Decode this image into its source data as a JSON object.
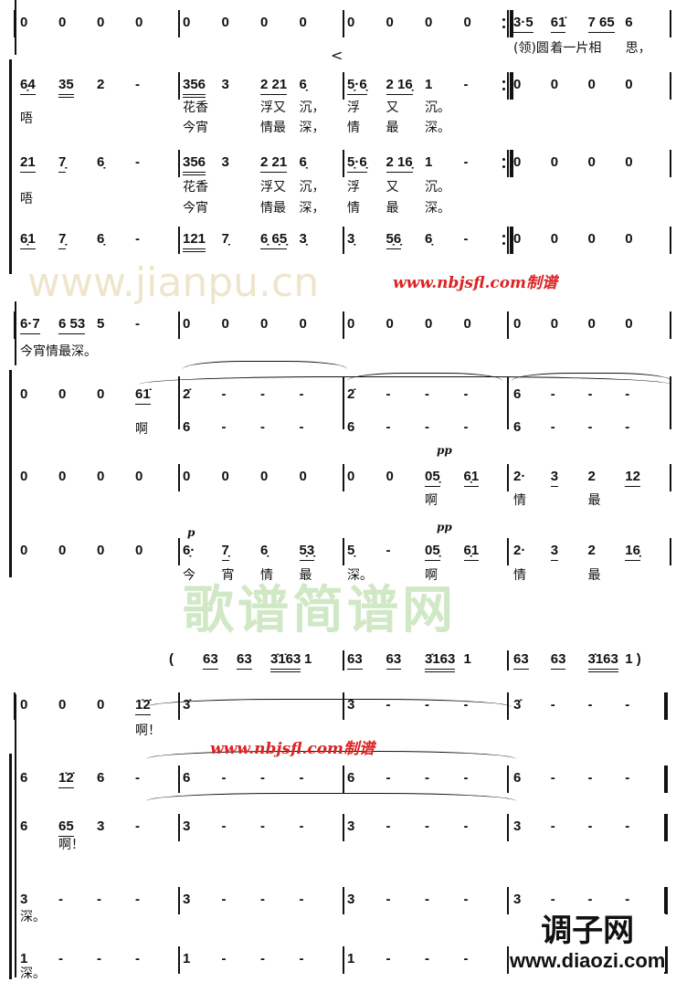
{
  "systems": [
    {
      "staves": [
        {
          "measures": [
            [
              "0",
              "0",
              "0",
              "0"
            ],
            [
              "0",
              "0",
              "0",
              "0"
            ],
            [
              "0",
              "0",
              "0",
              "0"
            ],
            [
              {
                "t": "3·5",
                "u": 1
              },
              {
                "t": "61̇",
                "u": 1
              },
              {
                "t": "7 65",
                "u": 1
              },
              "6"
            ]
          ],
          "lyrics": [
            [
              [],
              [],
              [],
              [
                "(领)圆",
                "着一片",
                "相",
                "思，"
              ]
            ]
          ]
        },
        {
          "measures": [
            [
              {
                "t": "6̣4",
                "u": 1
              },
              {
                "t": "35",
                "u": 2
              },
              "2",
              "-"
            ],
            [
              {
                "t": "356",
                "u": 2
              },
              "3",
              {
                "t": "2 21",
                "u": 1
              },
              "6̣"
            ],
            [
              {
                "t": "5̣·6̣",
                "u": 1
              },
              {
                "t": "2 16̣",
                "u": 1
              },
              "1",
              "-"
            ],
            [
              "0",
              "0",
              "0",
              "0"
            ]
          ],
          "lyrics": [
            [
              [
                "唔"
              ],
              [],
              [],
              []
            ],
            [
              [],
              [
                "花香",
                "",
                "浮又",
                "沉，"
              ],
              [
                "浮",
                "又",
                "沉。",
                ""
              ],
              []
            ],
            [
              [],
              [
                "今宵",
                "",
                "情最",
                "深，"
              ],
              [
                "情",
                "最",
                "深。",
                ""
              ],
              []
            ]
          ]
        },
        {
          "measures": [
            [
              {
                "t": "21",
                "u": 1
              },
              {
                "t": "7̣",
                "u": 1
              },
              "6̣",
              "-"
            ],
            [
              {
                "t": "356",
                "u": 2
              },
              "3",
              {
                "t": "2 21",
                "u": 1
              },
              "6̣"
            ],
            [
              {
                "t": "5̣·6̣",
                "u": 1
              },
              {
                "t": "2 16̣",
                "u": 1
              },
              "1",
              "-"
            ],
            [
              "0",
              "0",
              "0",
              "0"
            ]
          ],
          "lyrics": [
            [
              [
                "唔"
              ],
              [],
              [],
              []
            ],
            [
              [],
              [
                "花香",
                "",
                "浮又",
                "沉，"
              ],
              [
                "浮",
                "又",
                "沉。",
                ""
              ],
              []
            ],
            [
              [],
              [
                "今宵",
                "",
                "情最",
                "深，"
              ],
              [
                "情",
                "最",
                "深。",
                ""
              ],
              []
            ]
          ]
        },
        {
          "measures": [
            [
              {
                "t": "6̣1",
                "u": 1
              },
              {
                "t": "7̣",
                "u": 1
              },
              "6̣",
              "-"
            ],
            [
              {
                "t": "121",
                "u": 2
              },
              "7̣",
              {
                "t": "6̣ 6̣5̣",
                "u": 1
              },
              "3̣"
            ],
            [
              "3̣",
              {
                "t": "5̣6̣",
                "u": 1
              },
              "6̣",
              "-"
            ],
            [
              "0",
              "0",
              "0",
              "0"
            ]
          ],
          "lyrics": []
        }
      ]
    },
    {
      "staves": [
        {
          "measures": [
            [
              {
                "t": "6·7",
                "u": 1
              },
              {
                "t": "6 53",
                "u": 1
              },
              "5",
              "-"
            ],
            [
              "0",
              "0",
              "0",
              "0"
            ],
            [
              "0",
              "0",
              "0",
              "0"
            ],
            [
              "0",
              "0",
              "0",
              "0"
            ]
          ],
          "lyrics": [
            [
              [
                "今宵情最深。"
              ],
              [],
              [],
              []
            ]
          ]
        },
        {
          "measures": [
            [
              "0",
              "0",
              "0",
              {
                "t": "61̇",
                "u": 1
              }
            ],
            [
              "2̇",
              "-",
              "-",
              "-"
            ],
            [
              "2̇",
              "-",
              "-",
              "-"
            ],
            [
              "6",
              "-",
              "-",
              "-"
            ]
          ],
          "lower": [
            [],
            [
              "6",
              "-",
              "-",
              "-"
            ],
            [
              "6",
              "-",
              "-",
              "-"
            ],
            [
              "6",
              "-",
              "-",
              "-"
            ]
          ],
          "lyrics": [
            [
              [
                "",
                "",
                "",
                "啊"
              ],
              [],
              [],
              []
            ]
          ]
        },
        {
          "measures": [
            [
              "0",
              "0",
              "0",
              "0"
            ],
            [
              "0",
              "0",
              "0",
              "0"
            ],
            [
              "0",
              "0",
              {
                "t": "05̣",
                "u": 1
              },
              {
                "t": "6̣1",
                "u": 1
              }
            ],
            [
              "2·",
              {
                "t": "3",
                "u": 1
              },
              "2",
              {
                "t": "12",
                "u": 1
              }
            ]
          ],
          "lyrics": [
            [
              [],
              [],
              [
                "",
                "",
                "啊",
                ""
              ],
              [
                "情",
                "",
                "最",
                ""
              ]
            ]
          ]
        },
        {
          "measures": [
            [
              "0",
              "0",
              "0",
              "0"
            ],
            [
              "6̣·",
              {
                "t": "7̣",
                "u": 1
              },
              "6̣",
              {
                "t": "5̣3̣",
                "u": 1
              }
            ],
            [
              "5̣",
              "-",
              {
                "t": "05̣",
                "u": 1
              },
              {
                "t": "6̣1",
                "u": 1
              }
            ],
            [
              "2·",
              {
                "t": "3",
                "u": 1
              },
              "2",
              {
                "t": "16̣",
                "u": 1
              }
            ]
          ],
          "lyrics": [
            [
              [],
              [
                "今",
                "宵",
                "情",
                "最"
              ],
              [
                "深。",
                "",
                "啊",
                ""
              ],
              [
                "情",
                "",
                "最",
                ""
              ]
            ]
          ]
        }
      ],
      "dynamics": [
        "p",
        "pp",
        "pp"
      ]
    },
    {
      "top_line": [
        [],
        [
          "(",
          {
            "t": "63",
            "u": 1
          },
          {
            "t": "63",
            "u": 1
          },
          {
            "t": "3̇1̇63",
            "u": 2
          },
          "1"
        ],
        [
          {
            "t": "63",
            "u": 1
          },
          {
            "t": "63",
            "u": 1
          },
          {
            "t": "3̇163",
            "u": 2
          },
          "1"
        ],
        [
          {
            "t": "63",
            "u": 1
          },
          {
            "t": "63",
            "u": 1
          },
          {
            "t": "3̇163",
            "u": 2
          },
          "1 )"
        ]
      ],
      "staves": [
        {
          "measures": [
            [
              "0",
              "0",
              "0",
              {
                "t": "1̇2̇",
                "u": 1
              }
            ],
            [
              "3̇",
              "",
              "",
              ""
            ],
            [
              "3",
              "-",
              "-",
              "-"
            ],
            [
              "3̇",
              "-",
              "-",
              "-"
            ]
          ],
          "lyrics": [
            [
              [
                "",
                "",
                "",
                "啊！"
              ],
              [],
              [],
              []
            ]
          ]
        },
        {
          "measures": [
            [
              "6",
              {
                "t": "1̇2̇",
                "u": 1
              },
              "6",
              "-"
            ],
            [
              "6",
              "-",
              "-",
              "-"
            ],
            [
              "6",
              "-",
              "-",
              "-"
            ],
            [
              "6",
              "-",
              "-",
              "-"
            ]
          ],
          "lyrics": []
        },
        {
          "measures": [
            [
              "6",
              {
                "t": "65",
                "u": 1
              },
              "3",
              "-"
            ],
            [
              "3",
              "-",
              "-",
              "-"
            ],
            [
              "3",
              "-",
              "-",
              "-"
            ],
            [
              "3",
              "-",
              "-",
              "-"
            ]
          ],
          "lyrics": [
            [
              [
                "",
                "啊！",
                "",
                ""
              ],
              [],
              [],
              []
            ]
          ]
        },
        {
          "measures": [
            [
              "3",
              "-",
              "-",
              "-"
            ],
            [
              "3",
              "-",
              "-",
              "-"
            ],
            [
              "3",
              "-",
              "-",
              "-"
            ],
            [
              "3",
              "-",
              "-",
              "-"
            ]
          ],
          "lyrics": [
            [
              [
                "深。"
              ],
              [],
              [],
              []
            ]
          ]
        },
        {
          "measures": [
            [
              "1",
              "-",
              "-",
              "-"
            ],
            [
              "1",
              "-",
              "-",
              "-"
            ],
            [
              "1",
              "-",
              "-",
              "-"
            ],
            []
          ],
          "lyrics": [
            [
              [
                "深。"
              ],
              [],
              [],
              []
            ]
          ]
        }
      ]
    }
  ],
  "watermarks": {
    "green_logo": "歌谱简谱网",
    "green_url": "www.jianpu.cn",
    "red_url_1": "www.nbjsfl.com制谱",
    "red_url_2": "www.nbjsfl.com制谱",
    "site_logo": "调子网",
    "site_url": "www.diaozi.com"
  },
  "crescendo_mark": "<"
}
